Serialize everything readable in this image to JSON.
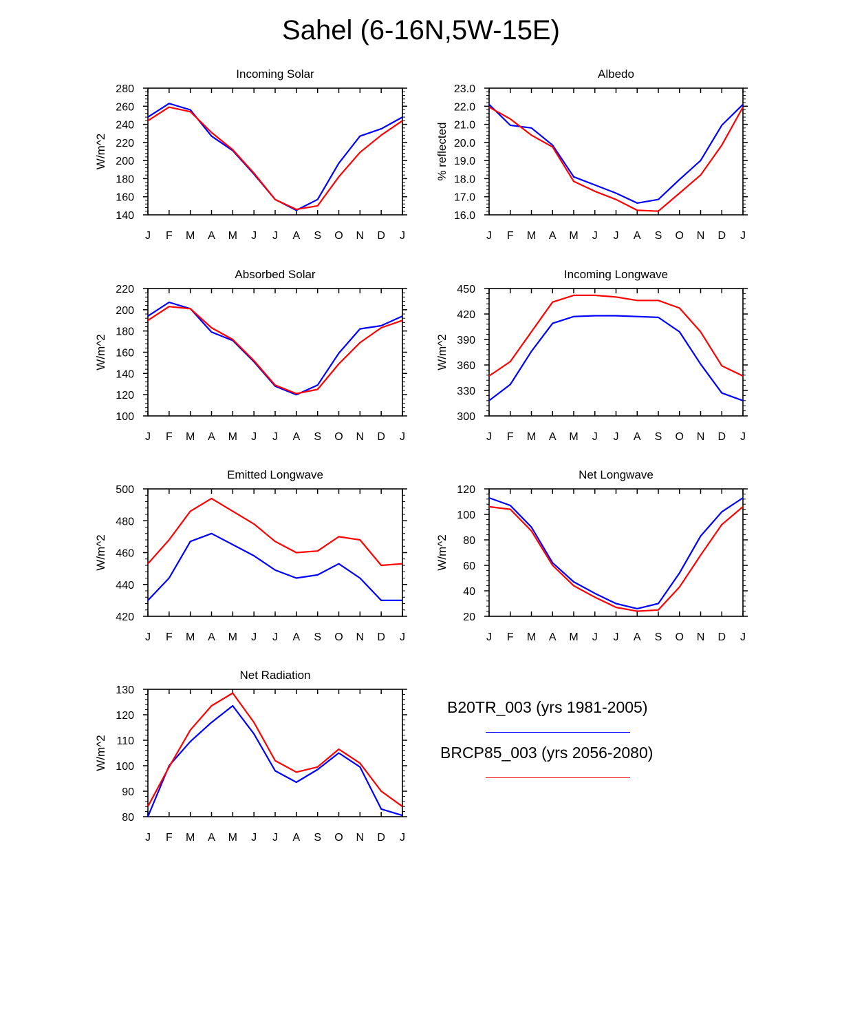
{
  "title": "Sahel (6-16N,5W-15E)",
  "colors": {
    "series1": "#0000ff",
    "series2": "#ff0000",
    "axis": "#000000"
  },
  "legend": [
    {
      "label": "B20TR_003 (yrs 1981-2005)",
      "color": "#0000ff"
    },
    {
      "label": "BRCP85_003 (yrs 2056-2080)",
      "color": "#ff0000"
    }
  ],
  "chart_data": [
    {
      "type": "line",
      "title": "Incoming Solar",
      "ylabel": "W/m^2",
      "xlabel": "",
      "categories": [
        "J",
        "F",
        "M",
        "A",
        "M",
        "J",
        "J",
        "A",
        "S",
        "O",
        "N",
        "D",
        "J"
      ],
      "ylim": [
        140,
        280
      ],
      "yticks": [
        "140",
        "160",
        "180",
        "200",
        "220",
        "240",
        "260",
        "280"
      ],
      "series": [
        {
          "name": "B20TR_003 (yrs 1981-2005)",
          "values": [
            248,
            263,
            256,
            227,
            211,
            185,
            157,
            145,
            157,
            197,
            227,
            235,
            248
          ]
        },
        {
          "name": "BRCP85_003 (yrs 2056-2080)",
          "values": [
            244,
            259,
            254,
            231,
            212,
            186,
            157,
            146,
            150,
            182,
            209,
            228,
            244
          ]
        }
      ]
    },
    {
      "type": "line",
      "title": "Albedo",
      "ylabel": "% reflected",
      "xlabel": "",
      "categories": [
        "J",
        "F",
        "M",
        "A",
        "M",
        "J",
        "J",
        "A",
        "S",
        "O",
        "N",
        "D",
        "J"
      ],
      "ylim": [
        16.0,
        23.0
      ],
      "yticks": [
        "16.0",
        "17.0",
        "18.0",
        "19.0",
        "20.0",
        "21.0",
        "22.0",
        "23.0"
      ],
      "series": [
        {
          "name": "B20TR_003 (yrs 1981-2005)",
          "values": [
            22.1,
            20.95,
            20.8,
            19.85,
            18.1,
            17.65,
            17.2,
            16.65,
            16.85,
            17.95,
            19.0,
            20.95,
            22.1
          ]
        },
        {
          "name": "BRCP85_003 (yrs 2056-2080)",
          "values": [
            21.95,
            21.3,
            20.4,
            19.75,
            17.85,
            17.3,
            16.85,
            16.25,
            16.2,
            17.2,
            18.2,
            19.85,
            21.95
          ]
        }
      ]
    },
    {
      "type": "line",
      "title": "Absorbed Solar",
      "ylabel": "W/m^2",
      "xlabel": "",
      "categories": [
        "J",
        "F",
        "M",
        "A",
        "M",
        "J",
        "J",
        "A",
        "S",
        "O",
        "N",
        "D",
        "J"
      ],
      "ylim": [
        100,
        220
      ],
      "yticks": [
        "100",
        "120",
        "140",
        "160",
        "180",
        "200",
        "220"
      ],
      "series": [
        {
          "name": "B20TR_003 (yrs 1981-2005)",
          "values": [
            194,
            207,
            201,
            179,
            171,
            151,
            128,
            120,
            129,
            159,
            182,
            185,
            194
          ]
        },
        {
          "name": "BRCP85_003 (yrs 2056-2080)",
          "values": [
            190,
            203,
            201,
            183,
            172,
            152,
            129,
            121,
            125,
            149,
            169,
            183,
            190
          ]
        }
      ]
    },
    {
      "type": "line",
      "title": "Incoming Longwave",
      "ylabel": "W/m^2",
      "xlabel": "",
      "categories": [
        "J",
        "F",
        "M",
        "A",
        "M",
        "J",
        "J",
        "A",
        "S",
        "O",
        "N",
        "D",
        "J"
      ],
      "ylim": [
        300,
        450
      ],
      "yticks": [
        "300",
        "330",
        "360",
        "390",
        "420",
        "450"
      ],
      "series": [
        {
          "name": "B20TR_003 (yrs 1981-2005)",
          "values": [
            318,
            337,
            376,
            409,
            417,
            418,
            418,
            417,
            416,
            399,
            361,
            327,
            318
          ]
        },
        {
          "name": "BRCP85_003 (yrs 2056-2080)",
          "values": [
            347,
            364,
            399,
            434,
            442,
            442,
            440,
            436,
            436,
            427,
            399,
            359,
            347
          ]
        }
      ]
    },
    {
      "type": "line",
      "title": "Emitted Longwave",
      "ylabel": "W/m^2",
      "xlabel": "",
      "categories": [
        "J",
        "F",
        "M",
        "A",
        "M",
        "J",
        "J",
        "A",
        "S",
        "O",
        "N",
        "D",
        "J"
      ],
      "ylim": [
        420,
        500
      ],
      "yticks": [
        "420",
        "440",
        "460",
        "480",
        "500"
      ],
      "series": [
        {
          "name": "B20TR_003 (yrs 1981-2005)",
          "values": [
            430,
            444,
            467,
            472,
            465,
            458,
            449,
            444,
            446,
            453,
            444,
            430,
            430
          ]
        },
        {
          "name": "BRCP85_003 (yrs 2056-2080)",
          "values": [
            453,
            468,
            486,
            494,
            486,
            478,
            467,
            460,
            461,
            470,
            468,
            452,
            453
          ]
        }
      ]
    },
    {
      "type": "line",
      "title": "Net Longwave",
      "ylabel": "W/m^2",
      "xlabel": "",
      "categories": [
        "J",
        "F",
        "M",
        "A",
        "M",
        "J",
        "J",
        "A",
        "S",
        "O",
        "N",
        "D",
        "J"
      ],
      "ylim": [
        20,
        120
      ],
      "yticks": [
        "20",
        "40",
        "60",
        "80",
        "100",
        "120"
      ],
      "series": [
        {
          "name": "B20TR_003 (yrs 1981-2005)",
          "values": [
            113,
            107,
            90,
            62,
            47,
            38,
            30,
            26,
            30,
            54,
            83,
            102,
            113
          ]
        },
        {
          "name": "BRCP85_003 (yrs 2056-2080)",
          "values": [
            106,
            104,
            87,
            60,
            44,
            35,
            27,
            24,
            25,
            43,
            68,
            92,
            106
          ]
        }
      ]
    },
    {
      "type": "line",
      "title": "Net Radiation",
      "ylabel": "W/m^2",
      "xlabel": "",
      "categories": [
        "J",
        "F",
        "M",
        "A",
        "M",
        "J",
        "J",
        "A",
        "S",
        "O",
        "N",
        "D",
        "J"
      ],
      "ylim": [
        80,
        130
      ],
      "yticks": [
        "80",
        "90",
        "100",
        "110",
        "120",
        "130"
      ],
      "series": [
        {
          "name": "B20TR_003 (yrs 1981-2005)",
          "values": [
            80,
            100,
            109.5,
            117,
            123.5,
            112.5,
            98,
            93.5,
            98.5,
            105,
            99.5,
            83,
            80.5
          ]
        },
        {
          "name": "BRCP85_003 (yrs 2056-2080)",
          "values": [
            84,
            99.5,
            114,
            123.5,
            128.5,
            117,
            102,
            97.5,
            99.5,
            106.5,
            101,
            90,
            84
          ]
        }
      ]
    }
  ]
}
